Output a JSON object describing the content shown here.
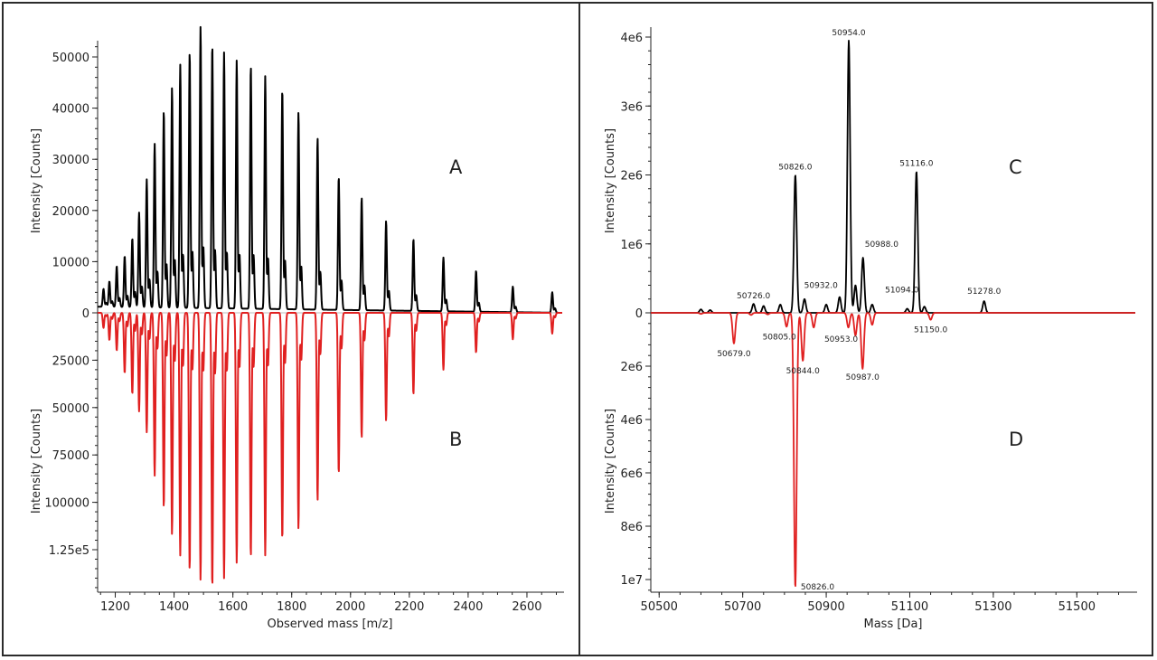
{
  "chart_data": [
    {
      "type": "line",
      "panel": "left",
      "xlabel": "Observed mass [m/z]",
      "ylabel_top": "Intensity [Counts]",
      "ylabel_bottom": "Intensity [Counts]",
      "xlim": [
        1140,
        2720
      ],
      "x_ticks": [
        "1200",
        "1400",
        "1600",
        "1800",
        "2000",
        "2200",
        "2400",
        "2600"
      ],
      "x_tick_values": [
        1200,
        1400,
        1600,
        1800,
        2000,
        2200,
        2400,
        2600
      ],
      "y_top_ticks": [
        "0",
        "10000",
        "20000",
        "30000",
        "40000",
        "50000"
      ],
      "y_top_tick_values": [
        0,
        10000,
        20000,
        30000,
        40000,
        50000
      ],
      "y_bottom_ticks": [
        "25000",
        "50000",
        "75000",
        "100000",
        "1.25e5"
      ],
      "y_bottom_tick_values": [
        25000,
        50000,
        75000,
        100000,
        125000
      ],
      "series": [
        {
          "name": "A",
          "color": "#000000",
          "direction": "up",
          "x": [
            1160,
            1180,
            1205,
            1232,
            1258,
            1281,
            1307,
            1334,
            1365,
            1393,
            1421,
            1453,
            1490,
            1530,
            1570,
            1613,
            1661,
            1710,
            1768,
            1823,
            1888,
            1960,
            2038,
            2121,
            2214,
            2316,
            2427,
            2552,
            2686
          ],
          "values": [
            3500,
            5000,
            8000,
            10000,
            13500,
            18500,
            25000,
            32000,
            38500,
            43000,
            47500,
            50000,
            55000,
            51500,
            50000,
            48500,
            47500,
            45500,
            43000,
            38500,
            33500,
            26000,
            22000,
            17500,
            14000,
            10500,
            8000,
            5000,
            4000
          ]
        },
        {
          "name": "B",
          "color": "#e02020",
          "direction": "down",
          "x": [
            1160,
            1180,
            1205,
            1232,
            1258,
            1281,
            1307,
            1334,
            1365,
            1393,
            1421,
            1453,
            1490,
            1530,
            1570,
            1613,
            1661,
            1710,
            1768,
            1823,
            1888,
            1960,
            2038,
            2121,
            2214,
            2316,
            2427,
            2552,
            2686
          ],
          "values": [
            8000,
            14500,
            20000,
            32000,
            43000,
            52000,
            63000,
            86000,
            103000,
            117000,
            128000,
            136000,
            141000,
            145000,
            140000,
            132000,
            129000,
            128000,
            120000,
            114000,
            99000,
            85000,
            66000,
            57000,
            43000,
            30000,
            21000,
            14000,
            11000
          ]
        }
      ],
      "panel_labels": [
        "A",
        "B"
      ]
    },
    {
      "type": "line",
      "panel": "right",
      "xlabel": "Mass [Da]",
      "ylabel_top": "Intensity [Counts]",
      "ylabel_bottom": "Intensity [Counts]",
      "xlim": [
        50480,
        51640
      ],
      "x_ticks": [
        "50500",
        "50700",
        "50900",
        "51100",
        "51300",
        "51500"
      ],
      "x_tick_values": [
        50500,
        50700,
        50900,
        51100,
        51300,
        51500
      ],
      "y_top_ticks": [
        "0",
        "1e6",
        "2e6",
        "3e6",
        "4e6"
      ],
      "y_top_tick_values": [
        0,
        1000000,
        2000000,
        3000000,
        4000000
      ],
      "y_bottom_ticks": [
        "2e6",
        "4e6",
        "6e6",
        "8e6",
        "1e7"
      ],
      "y_bottom_tick_values": [
        2000000,
        4000000,
        6000000,
        8000000,
        10000000
      ],
      "series": [
        {
          "name": "C",
          "color": "#000000",
          "direction": "up",
          "x": [
            50600,
            50622,
            50726,
            50750,
            50790,
            50826,
            50848,
            50900,
            50932,
            50954,
            50970,
            50988,
            51010,
            51094,
            51116,
            51135,
            51278
          ],
          "values": [
            50000,
            40000,
            130000,
            100000,
            120000,
            2000000,
            200000,
            120000,
            230000,
            3950000,
            400000,
            800000,
            120000,
            60000,
            2050000,
            90000,
            170000
          ],
          "labels": [
            {
              "x": 50726,
              "y": 130000,
              "text": "50726.0"
            },
            {
              "x": 50826,
              "y": 2000000,
              "text": "50826.0"
            },
            {
              "x": 50932,
              "y": 230000,
              "text": "50932.0"
            },
            {
              "x": 50954,
              "y": 3950000,
              "text": "50954.0"
            },
            {
              "x": 50988,
              "y": 800000,
              "text": "50988.0"
            },
            {
              "x": 51094,
              "y": 60000,
              "text": "51094.0"
            },
            {
              "x": 51116,
              "y": 2050000,
              "text": "51116.0"
            },
            {
              "x": 51278,
              "y": 170000,
              "text": "51278.0"
            }
          ]
        },
        {
          "name": "D",
          "color": "#e02020",
          "direction": "down",
          "x": [
            50600,
            50679,
            50720,
            50760,
            50805,
            50826,
            50844,
            50870,
            50953,
            50970,
            50987,
            51010,
            51150
          ],
          "values": [
            40000,
            1150000,
            80000,
            60000,
            520000,
            10300000,
            1800000,
            550000,
            550000,
            850000,
            2100000,
            450000,
            260000
          ],
          "labels": [
            {
              "x": 50679,
              "y": 1150000,
              "text": "50679.0"
            },
            {
              "x": 50805,
              "y": 520000,
              "text": "50805.0"
            },
            {
              "x": 50844,
              "y": 1800000,
              "text": "50844.0"
            },
            {
              "x": 50953,
              "y": 550000,
              "text": "50953.0"
            },
            {
              "x": 50987,
              "y": 2100000,
              "text": "50987.0"
            },
            {
              "x": 51150,
              "y": 260000,
              "text": "51150.0"
            },
            {
              "x": 50826,
              "y": 10300000,
              "text": "50826.0"
            }
          ]
        }
      ],
      "panel_labels": [
        "C",
        "D"
      ]
    }
  ]
}
